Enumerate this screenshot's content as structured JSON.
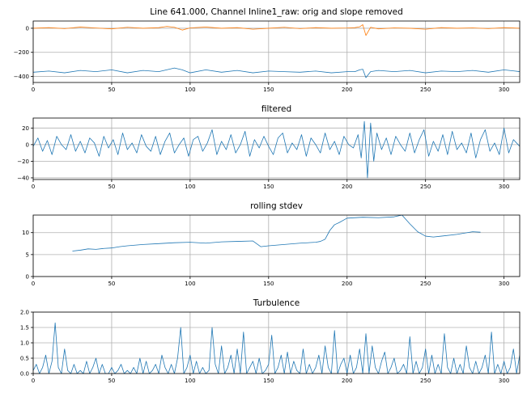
{
  "colors": {
    "blue": "#1f77b4",
    "orange": "#ff7f0e"
  },
  "chart_data": [
    {
      "type": "line",
      "title": "Line 641.000, Channel Inline1_raw: orig and slope removed",
      "xlim": [
        0,
        310
      ],
      "ylim": [
        -450,
        60
      ],
      "x_ticks": [
        0,
        50,
        100,
        150,
        200,
        250,
        300
      ],
      "y_ticks": [
        -400,
        -200,
        0
      ],
      "grid": true,
      "series": [
        {
          "color": "orange",
          "x": [
            0,
            10,
            20,
            30,
            40,
            50,
            60,
            70,
            80,
            85,
            90,
            95,
            100,
            110,
            120,
            130,
            140,
            150,
            160,
            170,
            180,
            190,
            200,
            205,
            208,
            210,
            212,
            215,
            220,
            230,
            240,
            250,
            260,
            270,
            280,
            290,
            300,
            310
          ],
          "y": [
            0,
            5,
            -3,
            10,
            2,
            -5,
            8,
            0,
            5,
            15,
            8,
            -15,
            3,
            10,
            0,
            5,
            -8,
            0,
            8,
            -3,
            5,
            0,
            2,
            5,
            12,
            30,
            -60,
            8,
            -5,
            3,
            0,
            -8,
            5,
            0,
            3,
            -3,
            5,
            0
          ]
        },
        {
          "color": "blue",
          "x": [
            0,
            10,
            20,
            30,
            40,
            50,
            60,
            70,
            80,
            90,
            95,
            100,
            110,
            120,
            130,
            140,
            150,
            160,
            170,
            180,
            190,
            200,
            205,
            208,
            210,
            212,
            215,
            220,
            230,
            240,
            250,
            260,
            270,
            280,
            290,
            300,
            310
          ],
          "y": [
            -365,
            -355,
            -370,
            -350,
            -360,
            -345,
            -370,
            -350,
            -360,
            -330,
            -345,
            -370,
            -345,
            -365,
            -350,
            -370,
            -355,
            -360,
            -365,
            -355,
            -370,
            -360,
            -360,
            -345,
            -340,
            -410,
            -360,
            -350,
            -360,
            -350,
            -370,
            -355,
            -360,
            -350,
            -365,
            -345,
            -360
          ]
        }
      ]
    },
    {
      "type": "line",
      "title": "filtered",
      "xlim": [
        0,
        310
      ],
      "ylim": [
        -42,
        32
      ],
      "x_ticks": [
        0,
        50,
        100,
        150,
        200,
        250,
        300
      ],
      "y_ticks": [
        -40,
        -20,
        0,
        20
      ],
      "grid": true,
      "series": [
        {
          "color": "blue",
          "x": [
            0,
            3,
            6,
            9,
            12,
            15,
            18,
            21,
            24,
            27,
            30,
            33,
            36,
            39,
            42,
            45,
            48,
            51,
            54,
            57,
            60,
            63,
            66,
            69,
            72,
            75,
            78,
            81,
            84,
            87,
            90,
            93,
            96,
            99,
            102,
            105,
            108,
            111,
            114,
            117,
            120,
            123,
            126,
            129,
            132,
            135,
            138,
            141,
            144,
            147,
            150,
            153,
            156,
            159,
            162,
            165,
            168,
            171,
            174,
            177,
            180,
            183,
            186,
            189,
            192,
            195,
            198,
            201,
            204,
            207,
            209,
            211,
            213,
            215,
            217,
            219,
            222,
            225,
            228,
            231,
            234,
            237,
            240,
            243,
            246,
            249,
            252,
            255,
            258,
            261,
            264,
            267,
            270,
            273,
            276,
            279,
            282,
            285,
            288,
            291,
            294,
            297,
            300,
            303,
            306,
            310
          ],
          "y": [
            -2,
            8,
            -8,
            5,
            -12,
            10,
            0,
            -6,
            12,
            -8,
            4,
            -10,
            8,
            2,
            -14,
            10,
            -4,
            6,
            -12,
            14,
            -6,
            2,
            -10,
            12,
            -2,
            -8,
            10,
            -12,
            4,
            14,
            -10,
            0,
            8,
            -14,
            6,
            10,
            -8,
            2,
            18,
            -12,
            4,
            -6,
            12,
            -10,
            0,
            16,
            -14,
            6,
            -4,
            10,
            -2,
            -12,
            8,
            14,
            -10,
            2,
            -6,
            12,
            -14,
            8,
            0,
            -10,
            14,
            -6,
            4,
            -12,
            10,
            0,
            -4,
            12,
            -16,
            28,
            -40,
            26,
            -20,
            14,
            -6,
            8,
            -12,
            10,
            0,
            -8,
            14,
            -10,
            6,
            18,
            -14,
            4,
            -8,
            12,
            -12,
            16,
            -6,
            2,
            -10,
            14,
            -16,
            6,
            18,
            -8,
            2,
            -12,
            20,
            -10,
            6,
            -2
          ]
        }
      ]
    },
    {
      "type": "line",
      "title": "rolling stdev",
      "xlim": [
        0,
        310
      ],
      "ylim": [
        0,
        14
      ],
      "x_ticks": [
        0,
        50,
        100,
        150,
        200,
        250,
        300
      ],
      "y_ticks": [
        0,
        5,
        10
      ],
      "grid": true,
      "series": [
        {
          "color": "blue",
          "x": [
            25,
            30,
            35,
            40,
            45,
            50,
            55,
            60,
            70,
            80,
            90,
            100,
            110,
            120,
            130,
            140,
            145,
            150,
            160,
            170,
            180,
            183,
            186,
            189,
            192,
            195,
            200,
            210,
            220,
            230,
            235,
            240,
            245,
            250,
            255,
            260,
            270,
            280,
            285
          ],
          "y": [
            5.8,
            6.0,
            6.3,
            6.2,
            6.4,
            6.5,
            6.8,
            7.0,
            7.3,
            7.5,
            7.7,
            7.8,
            7.6,
            7.9,
            8.0,
            8.1,
            6.8,
            7.0,
            7.3,
            7.6,
            7.8,
            8.0,
            8.5,
            10.5,
            11.8,
            12.3,
            13.3,
            13.5,
            13.4,
            13.6,
            14.0,
            12.0,
            10.2,
            9.2,
            9.0,
            9.2,
            9.6,
            10.2,
            10.1
          ]
        }
      ]
    },
    {
      "type": "line",
      "title": "Turbulence",
      "xlim": [
        0,
        310
      ],
      "ylim": [
        0,
        2.0
      ],
      "x_ticks": [
        0,
        50,
        100,
        150,
        200,
        250,
        300
      ],
      "y_ticks": [
        0.0,
        0.5,
        1.0,
        1.5,
        2.0
      ],
      "y_tick_labels": [
        "0.0",
        "0.5",
        "1.0",
        "1.5",
        "2.0"
      ],
      "grid": true,
      "series": [
        {
          "color": "blue",
          "x": [
            0,
            2,
            4,
            6,
            8,
            10,
            12,
            14,
            16,
            18,
            20,
            22,
            24,
            26,
            28,
            30,
            32,
            34,
            36,
            38,
            40,
            42,
            44,
            46,
            48,
            50,
            52,
            54,
            56,
            58,
            60,
            62,
            64,
            66,
            68,
            70,
            72,
            74,
            76,
            78,
            80,
            82,
            84,
            86,
            88,
            90,
            92,
            94,
            96,
            98,
            100,
            102,
            104,
            106,
            108,
            110,
            112,
            114,
            116,
            118,
            120,
            122,
            124,
            126,
            128,
            130,
            132,
            134,
            136,
            138,
            140,
            142,
            144,
            146,
            148,
            150,
            152,
            154,
            156,
            158,
            160,
            162,
            164,
            166,
            168,
            170,
            172,
            174,
            176,
            178,
            180,
            182,
            184,
            186,
            188,
            190,
            192,
            194,
            196,
            198,
            200,
            202,
            204,
            206,
            208,
            210,
            212,
            214,
            216,
            218,
            220,
            222,
            224,
            226,
            228,
            230,
            232,
            234,
            236,
            238,
            240,
            242,
            244,
            246,
            248,
            250,
            252,
            254,
            256,
            258,
            260,
            262,
            264,
            266,
            268,
            270,
            272,
            274,
            276,
            278,
            280,
            282,
            284,
            286,
            288,
            290,
            292,
            294,
            296,
            298,
            300,
            302,
            304,
            306,
            308,
            310
          ],
          "y": [
            0.1,
            0.3,
            0.0,
            0.2,
            0.6,
            0.0,
            0.4,
            1.65,
            0.2,
            0.0,
            0.8,
            0.1,
            0.0,
            0.3,
            0.0,
            0.1,
            0.0,
            0.4,
            0.0,
            0.2,
            0.5,
            0.0,
            0.3,
            0.0,
            0.0,
            0.2,
            0.0,
            0.1,
            0.3,
            0.0,
            0.1,
            0.0,
            0.2,
            0.0,
            0.5,
            0.0,
            0.4,
            0.0,
            0.1,
            0.3,
            0.0,
            0.6,
            0.2,
            0.0,
            0.3,
            0.0,
            0.5,
            1.5,
            0.0,
            0.2,
            0.6,
            0.0,
            0.4,
            0.0,
            0.2,
            0.0,
            0.1,
            1.5,
            0.3,
            0.0,
            0.9,
            0.0,
            0.2,
            0.6,
            0.0,
            0.8,
            0.0,
            1.35,
            0.0,
            0.2,
            0.4,
            0.0,
            0.5,
            0.0,
            0.1,
            0.3,
            1.25,
            0.0,
            0.2,
            0.6,
            0.0,
            0.7,
            0.0,
            0.4,
            0.1,
            0.0,
            0.8,
            0.0,
            0.3,
            0.0,
            0.2,
            0.6,
            0.0,
            0.9,
            0.2,
            0.0,
            1.4,
            0.0,
            0.3,
            0.5,
            0.0,
            0.6,
            0.0,
            0.2,
            0.8,
            0.0,
            1.3,
            0.0,
            0.9,
            0.2,
            0.0,
            0.4,
            0.7,
            0.0,
            0.2,
            0.5,
            0.0,
            0.1,
            0.3,
            0.0,
            1.2,
            0.0,
            0.4,
            0.0,
            0.2,
            0.8,
            0.0,
            0.6,
            0.0,
            0.3,
            0.0,
            1.3,
            0.2,
            0.0,
            0.5,
            0.0,
            0.3,
            0.0,
            0.9,
            0.2,
            0.0,
            0.4,
            0.0,
            0.2,
            0.6,
            0.0,
            1.35,
            0.0,
            0.3,
            0.0,
            0.4,
            0.0,
            0.2,
            0.8,
            0.0,
            0.6
          ]
        }
      ]
    }
  ]
}
